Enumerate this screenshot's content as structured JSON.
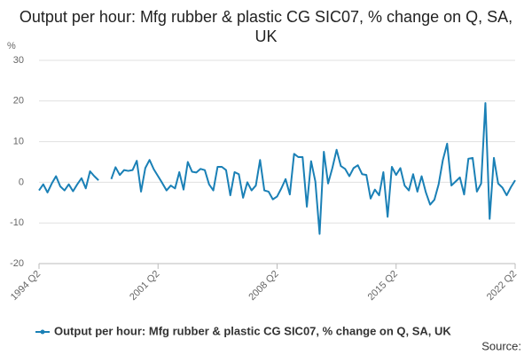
{
  "chart_data": {
    "type": "line",
    "title": "Output per hour: Mfg rubber & plastic CG SIC07, % change on Q, SA, UK",
    "y_label": "%",
    "source": "Source:",
    "categories": [
      "1994 Q2",
      null,
      null,
      null,
      null,
      null,
      null,
      null,
      null,
      null,
      null,
      null,
      null,
      null,
      null,
      null,
      null,
      null,
      null,
      null,
      null,
      null,
      null,
      null,
      null,
      null,
      null,
      null,
      "2001 Q2",
      null,
      null,
      null,
      null,
      null,
      null,
      null,
      null,
      null,
      null,
      null,
      null,
      null,
      null,
      null,
      null,
      null,
      null,
      null,
      null,
      null,
      null,
      null,
      null,
      null,
      null,
      null,
      "2008 Q2",
      null,
      null,
      null,
      null,
      null,
      null,
      null,
      null,
      null,
      null,
      null,
      null,
      null,
      null,
      null,
      null,
      null,
      null,
      null,
      null,
      null,
      null,
      null,
      null,
      null,
      null,
      null,
      "2015 Q2",
      null,
      null,
      null,
      null,
      null,
      null,
      null,
      null,
      null,
      null,
      null,
      null,
      null,
      null,
      null,
      null,
      null,
      null,
      null,
      null,
      null,
      null,
      null,
      null,
      null,
      null,
      null,
      "2022 Q2"
    ],
    "series": [
      {
        "name": "Output per hour: Mfg rubber & plastic CG SIC07, % change on Q, SA, UK",
        "color": "#1a80b6",
        "values": [
          -2,
          -0.5,
          -2.5,
          -0.3,
          1.5,
          -1,
          -2,
          -0.5,
          -2.2,
          -0.5,
          1,
          -1.5,
          2.7,
          1.5,
          0.5,
          null,
          null,
          0.8,
          3.7,
          1.8,
          3.0,
          2.8,
          3.0,
          5.3,
          -2.3,
          3.5,
          5.5,
          3.2,
          1.5,
          -0.2,
          -2,
          -0.8,
          -1.5,
          2.5,
          -1.8,
          5,
          2.6,
          2.4,
          3.3,
          3,
          -0.5,
          -2,
          3.8,
          3.8,
          3,
          -3.2,
          2.5,
          2,
          -3.8,
          0,
          -2,
          -0.8,
          5.5,
          -2,
          -2.3,
          -4.2,
          -3.5,
          -1.5,
          0.8,
          -3,
          7,
          6.2,
          6.2,
          -6,
          5.2,
          0.2,
          -12.7,
          7.5,
          -0.3,
          3.5,
          8,
          4,
          3.3,
          1.5,
          3.5,
          4.2,
          2,
          1.8,
          -4,
          -1.8,
          -3.2,
          2.5,
          -8.5,
          3.8,
          1.8,
          3.5,
          -0.8,
          -2,
          2,
          -2.3,
          1.5,
          -2.5,
          -5.5,
          -4.3,
          -0.5,
          5.5,
          9.5,
          -0.8,
          0.2,
          1.2,
          -3,
          5.8,
          6,
          -2.3,
          -0.3,
          19.5,
          -9,
          6,
          -0.3,
          -1.3,
          -3.2,
          -1.2,
          0.5
        ]
      }
    ],
    "ylim": [
      -20,
      30
    ],
    "yticks": [
      -20,
      -10,
      0,
      10,
      20,
      30
    ],
    "grid": true
  }
}
